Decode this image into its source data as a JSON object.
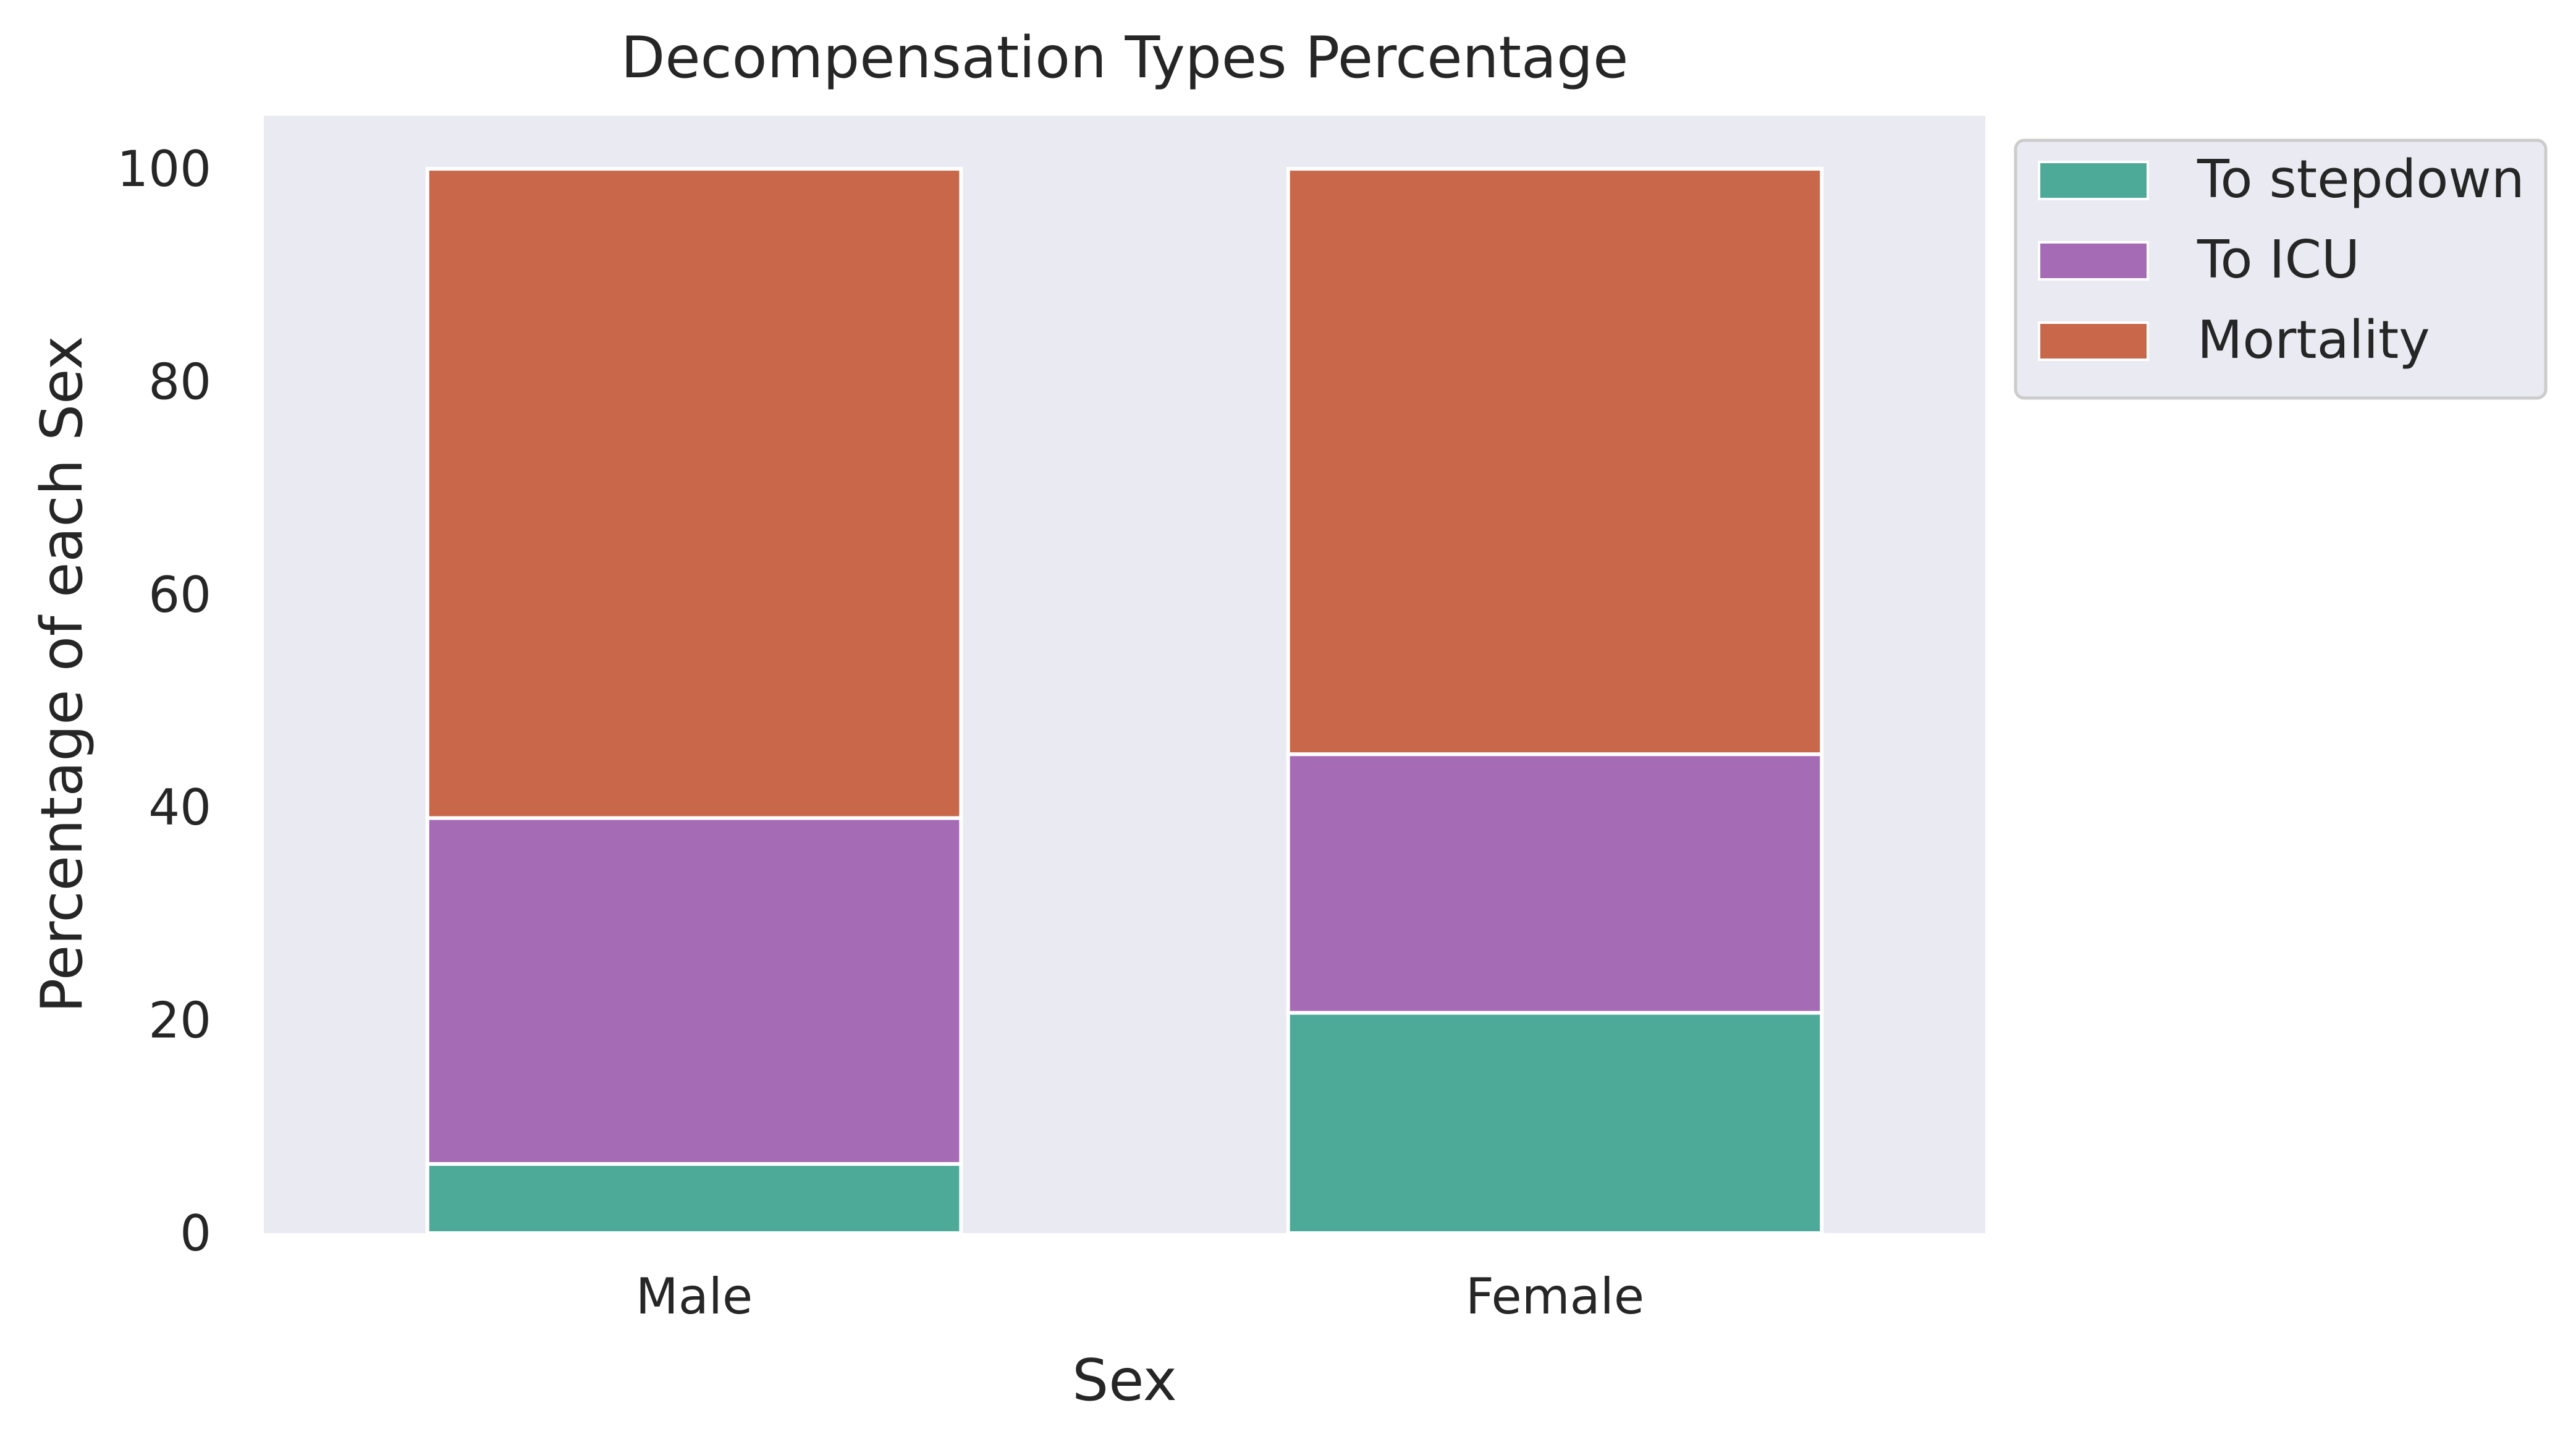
{
  "chart_data": {
    "type": "bar",
    "stacked": true,
    "title": "Decompensation Types Percentage",
    "xlabel": "Sex",
    "ylabel": "Percentage of each Sex",
    "categories": [
      "Male",
      "Female"
    ],
    "ylim": [
      0,
      105
    ],
    "yticks": [
      0,
      20,
      40,
      60,
      80,
      100
    ],
    "grid": false,
    "legend_position": "outside-right-top",
    "background_color": "#eaeaf2",
    "series": [
      {
        "name": "To stepdown",
        "color": "#4daa99",
        "values": [
          6.5,
          20.7
        ]
      },
      {
        "name": "To ICU",
        "color": "#a66bb5",
        "values": [
          32.5,
          24.3
        ]
      },
      {
        "name": "Mortality",
        "color": "#c8674a",
        "values": [
          61.0,
          55.0
        ]
      }
    ]
  }
}
